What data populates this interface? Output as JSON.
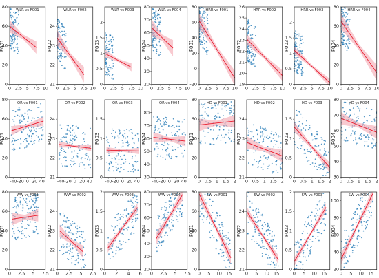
{
  "colors": {
    "points": "#1f77b4",
    "fit_line": "#e8192c",
    "band": "#f4a6b0"
  },
  "chart_data": [
    {
      "type": "scatter",
      "title": "WLR vs F001",
      "ylabel": "F001",
      "xlim": [
        0,
        10
      ],
      "ylim": [
        0,
        80
      ],
      "xticks": [
        0,
        2.5,
        5,
        7.5,
        10
      ],
      "yticks": [
        0,
        20,
        40,
        60,
        80
      ],
      "cluster": [
        0,
        2.5
      ],
      "fit": [
        [
          0,
          60
        ],
        [
          7.5,
          38
        ]
      ],
      "band": 4
    },
    {
      "type": "scatter",
      "title": "WLR vs F002",
      "ylabel": "F002",
      "xlim": [
        0,
        10
      ],
      "ylim": [
        21,
        25
      ],
      "xticks": [
        0,
        2.5,
        5,
        7.5,
        10
      ],
      "yticks": [
        21,
        22,
        23,
        24
      ],
      "cluster": [
        0,
        2.5
      ],
      "fit": [
        [
          0,
          23.4
        ],
        [
          7.5,
          21.5
        ]
      ],
      "band": 0.25
    },
    {
      "type": "scatter",
      "title": "WLR vs F003",
      "ylabel": "F003",
      "xlim": [
        0,
        10
      ],
      "ylim": [
        0,
        2.5
      ],
      "xticks": [
        0,
        2.5,
        5,
        7.5,
        10
      ],
      "yticks": [
        0,
        0.5,
        1.0,
        1.5,
        2.0
      ],
      "cluster": [
        0,
        2.5
      ],
      "fit": [
        [
          0,
          1.0
        ],
        [
          7.5,
          0.55
        ]
      ],
      "band": 0.08
    },
    {
      "type": "scatter",
      "title": "WLR vs F004",
      "ylabel": "F004",
      "xlim": [
        0,
        10
      ],
      "ylim": [
        20,
        80
      ],
      "xticks": [
        0,
        2.5,
        5,
        7.5,
        10
      ],
      "yticks": [
        20,
        30,
        40,
        50,
        60,
        70,
        80
      ],
      "cluster": [
        0,
        2.5
      ],
      "fit": [
        [
          0,
          64
        ],
        [
          6,
          48
        ]
      ],
      "band": 4
    },
    {
      "type": "scatter",
      "title": "HRR vs F001",
      "ylabel": "F001",
      "xlim": [
        0,
        10
      ],
      "ylim": [
        -20,
        80
      ],
      "xticks": [
        0,
        2.5,
        5,
        7.5,
        10
      ],
      "yticks": [
        -20,
        0,
        20,
        40,
        60,
        80
      ],
      "cluster": [
        0,
        2.5
      ],
      "fit": [
        [
          0,
          62
        ],
        [
          10,
          -12
        ]
      ],
      "band": 6
    },
    {
      "type": "scatter",
      "title": "HRR vs F002",
      "ylabel": "F002",
      "xlim": [
        0,
        10
      ],
      "ylim": [
        19,
        26
      ],
      "xticks": [
        0,
        2.5,
        5,
        7.5,
        10
      ],
      "yticks": [
        19,
        20,
        21,
        22,
        23,
        24,
        25,
        26
      ],
      "cluster": [
        0,
        2.5
      ],
      "fit": [
        [
          0,
          23.1
        ],
        [
          10,
          19.8
        ]
      ],
      "band": 0.3
    },
    {
      "type": "scatter",
      "title": "HRR vs F003",
      "ylabel": "F003",
      "xlim": [
        0,
        10
      ],
      "ylim": [
        0,
        2.5
      ],
      "xticks": [
        0,
        2.5,
        5,
        7.5,
        10
      ],
      "yticks": [
        0,
        0.5,
        1.0,
        1.5,
        2.0
      ],
      "cluster": [
        0,
        2.5
      ],
      "fit": [
        [
          0,
          1.1
        ],
        [
          10,
          0.05
        ]
      ],
      "band": 0.08
    },
    {
      "type": "scatter",
      "title": "HRR vs F004",
      "ylabel": "F004",
      "xlim": [
        0,
        10
      ],
      "ylim": [
        0,
        80
      ],
      "xticks": [
        0,
        2.5,
        5,
        7.5,
        10
      ],
      "yticks": [
        0,
        20,
        40,
        60,
        80
      ],
      "cluster": [
        0,
        2.5
      ],
      "fit": [
        [
          0,
          65
        ],
        [
          10,
          12
        ]
      ],
      "band": 5
    },
    {
      "type": "scatter",
      "title": "OR vs F001",
      "ylabel": "F001",
      "xlim": [
        -50,
        50
      ],
      "ylim": [
        0,
        80
      ],
      "xticks": [
        -40,
        -20,
        0,
        20,
        40
      ],
      "yticks": [
        0,
        20,
        40,
        60,
        80
      ],
      "cluster": [
        -45,
        45
      ],
      "fit": [
        [
          -45,
          48
        ],
        [
          45,
          58
        ]
      ],
      "band": 3
    },
    {
      "type": "scatter",
      "title": "OR vs F002",
      "ylabel": "F002",
      "xlim": [
        -50,
        50
      ],
      "ylim": [
        21,
        25
      ],
      "xticks": [
        -40,
        -20,
        0,
        20,
        40
      ],
      "yticks": [
        21,
        22,
        23,
        24
      ],
      "cluster": [
        -45,
        45
      ],
      "fit": [
        [
          -45,
          22.7
        ],
        [
          45,
          22.5
        ]
      ],
      "band": 0.1
    },
    {
      "type": "scatter",
      "title": "OR vs F003",
      "ylabel": "F003",
      "xlim": [
        -50,
        50
      ],
      "ylim": [
        0,
        2.0
      ],
      "xticks": [
        -40,
        -20,
        0,
        20,
        40
      ],
      "yticks": [
        0,
        0.5,
        1.0,
        1.5
      ],
      "cluster": [
        -45,
        45
      ],
      "fit": [
        [
          -45,
          0.7
        ],
        [
          45,
          0.68
        ]
      ],
      "band": 0.05
    },
    {
      "type": "scatter",
      "title": "OR vs F004",
      "ylabel": "F004",
      "xlim": [
        -50,
        50
      ],
      "ylim": [
        30,
        90
      ],
      "xticks": [
        -40,
        -20,
        0,
        20,
        40
      ],
      "yticks": [
        30,
        40,
        50,
        60,
        70,
        80
      ],
      "cluster": [
        -45,
        45
      ],
      "fit": [
        [
          -45,
          61
        ],
        [
          45,
          58
        ]
      ],
      "band": 2.5
    },
    {
      "type": "scatter",
      "title": "HD vs F001",
      "ylabel": "F001",
      "xlim": [
        0,
        2
      ],
      "ylim": [
        0,
        80
      ],
      "xticks": [
        0,
        0.5,
        1.0,
        1.5,
        2.0
      ],
      "yticks": [
        0,
        20,
        40,
        60,
        80
      ],
      "cluster": [
        0,
        2
      ],
      "fit": [
        [
          0,
          54
        ],
        [
          2,
          58
        ]
      ],
      "band": 4
    },
    {
      "type": "scatter",
      "title": "HD vs F002",
      "ylabel": "F002",
      "xlim": [
        0,
        2
      ],
      "ylim": [
        21,
        25
      ],
      "xticks": [
        0,
        0.5,
        1.0,
        1.5,
        2.0
      ],
      "yticks": [
        21,
        22,
        23,
        24
      ],
      "cluster": [
        0,
        2
      ],
      "fit": [
        [
          0,
          22.8
        ],
        [
          2,
          22.1
        ]
      ],
      "band": 0.2
    },
    {
      "type": "scatter",
      "title": "HD vs F003",
      "ylabel": "F003",
      "xlim": [
        0,
        2
      ],
      "ylim": [
        0,
        2.0
      ],
      "xticks": [
        0,
        0.5,
        1.0,
        1.5,
        2.0
      ],
      "yticks": [
        0,
        0.5,
        1.0,
        1.5
      ],
      "cluster": [
        0,
        2
      ],
      "fit": [
        [
          0,
          1.3
        ],
        [
          2,
          0.25
        ]
      ],
      "band": 0.08
    },
    {
      "type": "scatter",
      "title": "HD vs F004",
      "ylabel": "F004",
      "xlim": [
        0,
        2
      ],
      "ylim": [
        30,
        80
      ],
      "xticks": [
        0,
        0.5,
        1.0,
        1.5,
        2.0
      ],
      "yticks": [
        30,
        40,
        50,
        60,
        70,
        80
      ],
      "cluster": [
        0,
        2
      ],
      "fit": [
        [
          0,
          68
        ],
        [
          2,
          59
        ]
      ],
      "band": 2.5
    },
    {
      "type": "scatter",
      "title": "WW vs F001",
      "ylabel": "F001",
      "xlim": [
        0,
        7.5
      ],
      "ylim": [
        0,
        80
      ],
      "xticks": [
        0,
        2.5,
        5,
        7.5
      ],
      "yticks": [
        0,
        20,
        40,
        60,
        80
      ],
      "cluster": [
        0.5,
        6
      ],
      "fit": [
        [
          0.5,
          52
        ],
        [
          6,
          56
        ]
      ],
      "band": 4
    },
    {
      "type": "scatter",
      "title": "WW vs F002",
      "ylabel": "F002",
      "xlim": [
        0,
        7.5
      ],
      "ylim": [
        21,
        25
      ],
      "xticks": [
        0,
        2.5,
        5,
        7.5
      ],
      "yticks": [
        21,
        22,
        23,
        24
      ],
      "cluster": [
        0.5,
        6
      ],
      "fit": [
        [
          0.5,
          23.0
        ],
        [
          5.5,
          21.9
        ]
      ],
      "band": 0.2
    },
    {
      "type": "scatter",
      "title": "WW vs F003",
      "ylabel": "F003",
      "xlim": [
        0,
        6
      ],
      "ylim": [
        0,
        2.0
      ],
      "xticks": [
        0,
        2,
        4,
        6
      ],
      "yticks": [
        0,
        0.5,
        1.0,
        1.5,
        2.0
      ],
      "cluster": [
        0.5,
        5.5
      ],
      "fit": [
        [
          0.5,
          0.55
        ],
        [
          5.5,
          1.6
        ]
      ],
      "band": 0.07
    },
    {
      "type": "scatter",
      "title": "WW vs F004",
      "ylabel": "F004",
      "xlim": [
        0,
        7.5
      ],
      "ylim": [
        20,
        80
      ],
      "xticks": [
        0,
        2.5,
        5,
        7.5
      ],
      "yticks": [
        20,
        30,
        40,
        50,
        60,
        70,
        80
      ],
      "cluster": [
        1,
        6.5
      ],
      "fit": [
        [
          1,
          44
        ],
        [
          6.5,
          78
        ]
      ],
      "band": 3
    },
    {
      "type": "scatter",
      "title": "SW vs F001",
      "ylabel": "F001",
      "xlim": [
        0,
        18
      ],
      "ylim": [
        0,
        80
      ],
      "xticks": [
        0,
        5,
        10,
        15
      ],
      "yticks": [
        0,
        20,
        40,
        60,
        80
      ],
      "cluster": [
        0,
        16
      ],
      "fit": [
        [
          0,
          78
        ],
        [
          16,
          12
        ]
      ],
      "band": 4
    },
    {
      "type": "scatter",
      "title": "SW vs F002",
      "ylabel": "F002",
      "xlim": [
        0,
        18
      ],
      "ylim": [
        21,
        25
      ],
      "xticks": [
        0,
        5,
        10,
        15
      ],
      "yticks": [
        21,
        22,
        23,
        24
      ],
      "cluster": [
        0,
        16
      ],
      "fit": [
        [
          0,
          24.0
        ],
        [
          16,
          21.5
        ]
      ],
      "band": 0.15
    },
    {
      "type": "scatter",
      "title": "SW vs F003",
      "ylabel": "F003",
      "xlim": [
        0,
        18
      ],
      "ylim": [
        0,
        2.0
      ],
      "xticks": [
        0,
        5,
        10,
        15
      ],
      "yticks": [
        0,
        0.5,
        1.0,
        1.5,
        2.0
      ],
      "cluster": [
        0,
        16
      ],
      "fit": [
        [
          0,
          0.2
        ],
        [
          16,
          1.6
        ]
      ],
      "band": 0.07
    },
    {
      "type": "scatter",
      "title": "SW vs F004",
      "ylabel": "F004",
      "xlim": [
        0,
        18
      ],
      "ylim": [
        20,
        110
      ],
      "xticks": [
        0,
        5,
        10,
        15
      ],
      "yticks": [
        20,
        40,
        60,
        80,
        100
      ],
      "cluster": [
        0,
        16
      ],
      "fit": [
        [
          0,
          32
        ],
        [
          16,
          108
        ]
      ],
      "band": 4
    }
  ]
}
